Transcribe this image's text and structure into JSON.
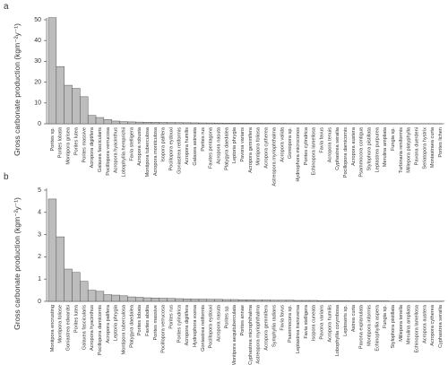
{
  "chart_data": [
    {
      "type": "bar",
      "panel": "a",
      "ylabel": "Gross carbonate production (kgm⁻²y⁻¹)",
      "color": "#bdbdbd",
      "ylim": [
        0,
        50
      ],
      "yticks": [
        0,
        10,
        20,
        30,
        40,
        50
      ],
      "categories": [
        "Porites sp.",
        "Porites lobata",
        "Montipora grisea",
        "Porites lutea",
        "Porites massive",
        "Acropora digitifera",
        "Galaxea fascicularis",
        "Pocillopora verrucosa",
        "Acropora hyacinthus",
        "Lobophyllia hemprichii",
        "Favia stelligera",
        "Acropora robusta",
        "Montipora tuberculosa",
        "Acropora monticulosa",
        "Isopora palifera",
        "Pocillopora eydouxi",
        "Goniastrea retiformis",
        "Acropora humilis",
        "Galaxea astreata",
        "Porites rus",
        "Favites pentagona",
        "Acropora nasuta",
        "Platygyra daedalea",
        "Leptoria phrygia",
        "Pavona varians",
        "Acropora gemmifera",
        "Montipora foliosa",
        "Acropora cytherea",
        "Astreopora myriophthalma",
        "Acropora valida",
        "Goniopora sp.",
        "Hydnophora microconos",
        "Porites cylindrica",
        "Echinopora lamellosa",
        "Favia favus",
        "Acropora tenuis",
        "Cyphastrea serailia",
        "Pocillopora damicornis",
        "Acropora austera",
        "Psammocora contigua",
        "Stylophora pistillata",
        "Leptastrea purpurea",
        "Merulina ampliata",
        "Fungia sp.",
        "Turbinaria reniformis",
        "Millepora platyphylla",
        "Pavona duerdeni",
        "Seriatopora hystrix",
        "Montastraea curta",
        "Porites lichen"
      ],
      "values": [
        51,
        27.5,
        18.5,
        17,
        13,
        4,
        3,
        2,
        1.3,
        1,
        0.9,
        0.8,
        0.75,
        0.7,
        0.65,
        0.6,
        0.55,
        0.5,
        0.45,
        0.4,
        0.38,
        0.35,
        0.32,
        0.3,
        0.28,
        0.26,
        0.24,
        0.22,
        0.2,
        0.18,
        0.16,
        0.15,
        0.14,
        0.13,
        0.12,
        0.11,
        0.1,
        0.09,
        0.08,
        0.07,
        0.06,
        0.05,
        0.05,
        0.04,
        0.04,
        0.03,
        0.03,
        0.02,
        0.02,
        0.01
      ]
    },
    {
      "type": "bar",
      "panel": "b",
      "ylabel": "Gross carbonate production (kgm⁻²y⁻¹)",
      "color": "#bdbdbd",
      "ylim": [
        0,
        5
      ],
      "yticks": [
        0,
        1,
        2,
        3,
        4,
        5
      ],
      "categories": [
        "Montipora encrusting",
        "Montipora foliose",
        "Goniastrea edwardsi",
        "Porites lutea",
        "Galaxea fascicularis",
        "Acropora hyacinthus",
        "Pocillopora damicornis",
        "Acropora palifera",
        "Leptoria phrygia",
        "Montipora tuberculosa",
        "Platygyra daedalea",
        "Porites lobata",
        "Favites abdita",
        "Porites massive",
        "Pocillopora verrucosa",
        "Porites rus",
        "Porites cylindrica",
        "Acropora digitifera",
        "Hydnophora exesa",
        "Goniastrea retiformis",
        "Pocillopora eydouxi",
        "Acropora nasuta",
        "Porites sp.",
        "Montipora aequituberculata",
        "Porites annae",
        "Cyphastrea microphthalma",
        "Astreopora myriophthalma",
        "Acropora gemmifera",
        "Symphyllia radians",
        "Favia favus",
        "Psammocora sp.",
        "Leptastrea transversa",
        "Favia stelligera",
        "Isopora cuneata",
        "Pavona varians",
        "Acropora humilis",
        "Lobophyllia corymbosa",
        "Leptoseris sp.",
        "Astrea curta",
        "Pavona explanulata",
        "Montipora informis",
        "Echinophyllia aspera",
        "Fungia sp.",
        "Stylophora pistillata",
        "Millepora tenella",
        "Merulina ampliata",
        "Echinopora lamellosa",
        "Acropora austera",
        "Acropora cytherea",
        "Cyphastrea serailia"
      ],
      "values": [
        4.6,
        2.9,
        1.45,
        1.3,
        0.9,
        0.5,
        0.45,
        0.3,
        0.28,
        0.25,
        0.2,
        0.18,
        0.16,
        0.15,
        0.14,
        0.13,
        0.12,
        0.11,
        0.1,
        0.1,
        0.09,
        0.09,
        0.08,
        0.08,
        0.07,
        0.07,
        0.06,
        0.06,
        0.05,
        0.05,
        0.05,
        0.04,
        0.04,
        0.04,
        0.03,
        0.03,
        0.03,
        0.03,
        0.02,
        0.02,
        0.02,
        0.02,
        0.02,
        0.01,
        0.01,
        0.01,
        0.01,
        0.01,
        0.01,
        0.01
      ]
    }
  ]
}
